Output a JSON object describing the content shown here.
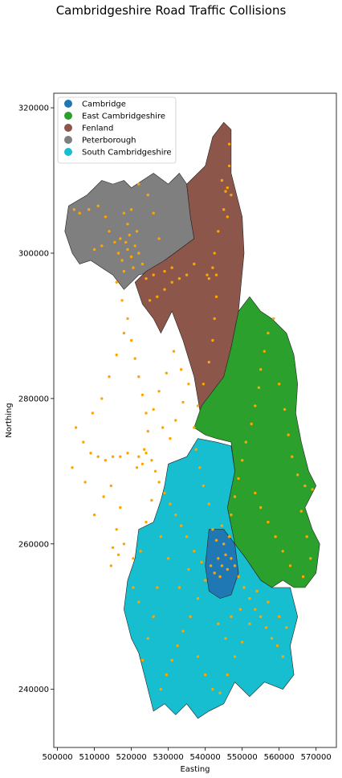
{
  "title": "Cambridgeshire Road Traffic Collisions",
  "chart_data": {
    "type": "scatter",
    "subtype": "choropleth-map-with-points",
    "title": "Cambridgeshire Road Traffic Collisions",
    "xlabel": "Easting",
    "ylabel": "Northing",
    "xlim": [
      499000,
      575500
    ],
    "ylim": [
      232000,
      322000
    ],
    "xticks": [
      500000,
      510000,
      520000,
      530000,
      540000,
      550000,
      560000,
      570000
    ],
    "yticks": [
      240000,
      260000,
      280000,
      300000,
      320000
    ],
    "grid": false,
    "legend_position": "top-left",
    "legend": [
      {
        "name": "Cambridge",
        "color": "#1f77b4"
      },
      {
        "name": "East Cambridgeshire",
        "color": "#2ca02c"
      },
      {
        "name": "Fenland",
        "color": "#8c564b"
      },
      {
        "name": "Peterborough",
        "color": "#7f7f7f"
      },
      {
        "name": "South Cambridgeshire",
        "color": "#17becf"
      }
    ],
    "point_color": "#ffa500",
    "regions": [
      {
        "name": "Peterborough",
        "color": "#7f7f7f",
        "boundary": [
          [
            503000,
            306500
          ],
          [
            508000,
            308000
          ],
          [
            512000,
            310000
          ],
          [
            515000,
            309500
          ],
          [
            518000,
            310000
          ],
          [
            520000,
            309000
          ],
          [
            523000,
            310000
          ],
          [
            526000,
            311000
          ],
          [
            530000,
            309500
          ],
          [
            533000,
            311000
          ],
          [
            535000,
            309500
          ],
          [
            536000,
            305000
          ],
          [
            537000,
            302000
          ],
          [
            533000,
            300500
          ],
          [
            529000,
            299000
          ],
          [
            526000,
            297500
          ],
          [
            522000,
            297000
          ],
          [
            518000,
            295000
          ],
          [
            515000,
            297000
          ],
          [
            512000,
            298000
          ],
          [
            509000,
            299000
          ],
          [
            506000,
            298500
          ],
          [
            504000,
            300000
          ],
          [
            502000,
            303000
          ]
        ]
      },
      {
        "name": "Fenland",
        "color": "#8c564b",
        "boundary": [
          [
            535000,
            309500
          ],
          [
            540000,
            312000
          ],
          [
            542000,
            316000
          ],
          [
            545000,
            318000
          ],
          [
            547000,
            317000
          ],
          [
            547000,
            311000
          ],
          [
            550000,
            305000
          ],
          [
            550500,
            300000
          ],
          [
            549000,
            292000
          ],
          [
            547000,
            287000
          ],
          [
            545000,
            282000
          ],
          [
            542000,
            279000
          ],
          [
            539000,
            277000
          ],
          [
            537000,
            283000
          ],
          [
            534000,
            288000
          ],
          [
            531000,
            292000
          ],
          [
            528000,
            289000
          ],
          [
            526000,
            291000
          ],
          [
            523000,
            293000
          ],
          [
            521000,
            296000
          ],
          [
            524000,
            297500
          ],
          [
            529000,
            299000
          ],
          [
            533000,
            300500
          ],
          [
            537000,
            302000
          ],
          [
            536000,
            305000
          ]
        ]
      },
      {
        "name": "East Cambridgeshire",
        "color": "#2ca02c",
        "boundary": [
          [
            547000,
            287000
          ],
          [
            549000,
            292000
          ],
          [
            552000,
            294000
          ],
          [
            555000,
            292000
          ],
          [
            558000,
            291000
          ],
          [
            562000,
            289000
          ],
          [
            564000,
            286000
          ],
          [
            565000,
            282000
          ],
          [
            564500,
            278000
          ],
          [
            566000,
            274000
          ],
          [
            568000,
            270000
          ],
          [
            570000,
            268000
          ],
          [
            567000,
            265000
          ],
          [
            569000,
            262000
          ],
          [
            571000,
            260000
          ],
          [
            570000,
            256000
          ],
          [
            567000,
            254000
          ],
          [
            564000,
            254000
          ],
          [
            561000,
            255000
          ],
          [
            558000,
            254000
          ],
          [
            555000,
            255000
          ],
          [
            551000,
            258000
          ],
          [
            548000,
            260000
          ],
          [
            546000,
            265000
          ],
          [
            548000,
            270000
          ],
          [
            547000,
            274000
          ],
          [
            543000,
            274500
          ],
          [
            540000,
            275000
          ],
          [
            537000,
            276000
          ],
          [
            539000,
            279000
          ],
          [
            542000,
            281000
          ],
          [
            545000,
            283000
          ]
        ]
      },
      {
        "name": "South Cambridgeshire",
        "color": "#17becf",
        "boundary": [
          [
            530000,
            271000
          ],
          [
            535000,
            272000
          ],
          [
            538000,
            274500
          ],
          [
            543000,
            274000
          ],
          [
            547000,
            273500
          ],
          [
            548000,
            270000
          ],
          [
            546000,
            265000
          ],
          [
            548000,
            260000
          ],
          [
            551000,
            258000
          ],
          [
            555000,
            255000
          ],
          [
            558000,
            254000
          ],
          [
            563000,
            254000
          ],
          [
            565000,
            250000
          ],
          [
            563000,
            246000
          ],
          [
            564000,
            242000
          ],
          [
            561000,
            240000
          ],
          [
            556000,
            241000
          ],
          [
            552000,
            239000
          ],
          [
            548000,
            241000
          ],
          [
            545000,
            238000
          ],
          [
            541000,
            237000
          ],
          [
            538000,
            236000
          ],
          [
            535000,
            238000
          ],
          [
            532000,
            236500
          ],
          [
            529000,
            238000
          ],
          [
            526000,
            237000
          ],
          [
            524000,
            241000
          ],
          [
            522000,
            245000
          ],
          [
            520000,
            247000
          ],
          [
            518000,
            251000
          ],
          [
            519000,
            255000
          ],
          [
            521000,
            258000
          ],
          [
            522000,
            262000
          ],
          [
            526000,
            263000
          ],
          [
            528000,
            266000
          ],
          [
            529000,
            268000
          ]
        ]
      },
      {
        "name": "Cambridge",
        "color": "#1f77b4",
        "boundary": [
          [
            541000,
            262000
          ],
          [
            545000,
            262000
          ],
          [
            548000,
            260000
          ],
          [
            549000,
            256000
          ],
          [
            547000,
            253000
          ],
          [
            544000,
            252500
          ],
          [
            541000,
            253500
          ],
          [
            540000,
            257000
          ]
        ]
      }
    ],
    "collision_points": [
      [
        519000,
        300500
      ],
      [
        518500,
        301500
      ],
      [
        520000,
        299500
      ],
      [
        517500,
        299000
      ],
      [
        521000,
        301000
      ],
      [
        519500,
        302500
      ],
      [
        516500,
        300000
      ],
      [
        520500,
        298000
      ],
      [
        518000,
        297500
      ],
      [
        522000,
        300000
      ],
      [
        519000,
        304000
      ],
      [
        517000,
        302000
      ],
      [
        521500,
        303000
      ],
      [
        515500,
        301500
      ],
      [
        523000,
        298500
      ],
      [
        518000,
        305500
      ],
      [
        520000,
        306000
      ],
      [
        514000,
        303000
      ],
      [
        513000,
        305000
      ],
      [
        511000,
        306500
      ],
      [
        508500,
        306000
      ],
      [
        506000,
        305500
      ],
      [
        504500,
        306000
      ],
      [
        512000,
        301000
      ],
      [
        510000,
        300500
      ],
      [
        524000,
        296500
      ],
      [
        526000,
        297000
      ],
      [
        529000,
        297500
      ],
      [
        531000,
        298000
      ],
      [
        527500,
        302000
      ],
      [
        526000,
        305500
      ],
      [
        524500,
        308000
      ],
      [
        522000,
        309500
      ],
      [
        516000,
        296000
      ],
      [
        517500,
        293500
      ],
      [
        519000,
        291000
      ],
      [
        520000,
        288000
      ],
      [
        521000,
        285500
      ],
      [
        522000,
        283000
      ],
      [
        523000,
        280500
      ],
      [
        524000,
        278000
      ],
      [
        524500,
        275500
      ],
      [
        523500,
        273000
      ],
      [
        522000,
        272000
      ],
      [
        524000,
        272500
      ],
      [
        525500,
        271500
      ],
      [
        523000,
        271000
      ],
      [
        521500,
        270500
      ],
      [
        526500,
        270000
      ],
      [
        527500,
        268500
      ],
      [
        529000,
        267000
      ],
      [
        530500,
        265500
      ],
      [
        532000,
        264000
      ],
      [
        533500,
        262500
      ],
      [
        535000,
        261000
      ],
      [
        537000,
        259000
      ],
      [
        539000,
        257500
      ],
      [
        541500,
        257000
      ],
      [
        543500,
        258000
      ],
      [
        544500,
        257000
      ],
      [
        545500,
        258500
      ],
      [
        546000,
        256500
      ],
      [
        544000,
        255500
      ],
      [
        542500,
        256000
      ],
      [
        545000,
        260000
      ],
      [
        543000,
        260500
      ],
      [
        546500,
        261000
      ],
      [
        544500,
        262500
      ],
      [
        542000,
        262000
      ],
      [
        547000,
        258000
      ],
      [
        548000,
        257000
      ],
      [
        549000,
        255500
      ],
      [
        550500,
        254000
      ],
      [
        552000,
        252500
      ],
      [
        553500,
        251000
      ],
      [
        555000,
        250000
      ],
      [
        556500,
        248500
      ],
      [
        558000,
        247000
      ],
      [
        559500,
        246000
      ],
      [
        561000,
        244500
      ],
      [
        540000,
        255000
      ],
      [
        538000,
        252500
      ],
      [
        536000,
        250000
      ],
      [
        534000,
        248000
      ],
      [
        532500,
        246000
      ],
      [
        531000,
        244000
      ],
      [
        529500,
        242000
      ],
      [
        528000,
        240000
      ],
      [
        547000,
        264000
      ],
      [
        548000,
        266500
      ],
      [
        549000,
        269000
      ],
      [
        550000,
        271500
      ],
      [
        551000,
        274000
      ],
      [
        552500,
        276500
      ],
      [
        553500,
        279000
      ],
      [
        554500,
        281500
      ],
      [
        555000,
        284000
      ],
      [
        556000,
        286500
      ],
      [
        557000,
        289000
      ],
      [
        558500,
        291000
      ],
      [
        541000,
        265500
      ],
      [
        539500,
        268000
      ],
      [
        538500,
        270500
      ],
      [
        537500,
        273000
      ],
      [
        537000,
        276000
      ],
      [
        538000,
        279000
      ],
      [
        539500,
        282000
      ],
      [
        541000,
        285000
      ],
      [
        542000,
        288000
      ],
      [
        542500,
        291000
      ],
      [
        543000,
        294000
      ],
      [
        543000,
        297000
      ],
      [
        542500,
        300000
      ],
      [
        543500,
        303000
      ],
      [
        545000,
        306000
      ],
      [
        546000,
        309000
      ],
      [
        546500,
        312000
      ],
      [
        546500,
        315000
      ],
      [
        545500,
        308500
      ],
      [
        547000,
        308000
      ],
      [
        544500,
        310000
      ],
      [
        546000,
        305000
      ],
      [
        541000,
        296500
      ],
      [
        542000,
        298000
      ],
      [
        540500,
        297000
      ],
      [
        537000,
        298500
      ],
      [
        535000,
        297000
      ],
      [
        533000,
        296500
      ],
      [
        531000,
        296000
      ],
      [
        529000,
        295000
      ],
      [
        527000,
        294000
      ],
      [
        525000,
        293500
      ],
      [
        560000,
        282000
      ],
      [
        561500,
        278500
      ],
      [
        562500,
        275000
      ],
      [
        563500,
        272000
      ],
      [
        565000,
        269500
      ],
      [
        567000,
        268000
      ],
      [
        569000,
        267500
      ],
      [
        566000,
        264500
      ],
      [
        567500,
        261000
      ],
      [
        568500,
        258000
      ],
      [
        566500,
        255500
      ],
      [
        563000,
        257000
      ],
      [
        561000,
        259000
      ],
      [
        559000,
        261000
      ],
      [
        557000,
        263000
      ],
      [
        555000,
        265000
      ],
      [
        553500,
        267000
      ],
      [
        505000,
        276000
      ],
      [
        507000,
        274000
      ],
      [
        509000,
        272500
      ],
      [
        511000,
        272000
      ],
      [
        513000,
        271500
      ],
      [
        515000,
        272000
      ],
      [
        517000,
        272000
      ],
      [
        519000,
        272500
      ],
      [
        509500,
        278000
      ],
      [
        512000,
        280000
      ],
      [
        514000,
        283000
      ],
      [
        516000,
        286000
      ],
      [
        518000,
        289000
      ],
      [
        517000,
        265000
      ],
      [
        516000,
        262000
      ],
      [
        515000,
        259500
      ],
      [
        514500,
        257000
      ],
      [
        518000,
        260000
      ],
      [
        516500,
        258500
      ],
      [
        520500,
        258000
      ],
      [
        522500,
        259000
      ],
      [
        524000,
        263000
      ],
      [
        525500,
        266000
      ],
      [
        527000,
        254000
      ],
      [
        526000,
        250000
      ],
      [
        524500,
        247000
      ],
      [
        523000,
        244000
      ],
      [
        522000,
        252000
      ],
      [
        520500,
        254000
      ],
      [
        533000,
        254000
      ],
      [
        535500,
        256500
      ],
      [
        530000,
        258000
      ],
      [
        528000,
        261000
      ],
      [
        538000,
        244500
      ],
      [
        540000,
        242000
      ],
      [
        542000,
        240000
      ],
      [
        544000,
        239500
      ],
      [
        546000,
        242000
      ],
      [
        548000,
        244500
      ],
      [
        550000,
        246500
      ],
      [
        552000,
        249000
      ],
      [
        554000,
        253500
      ],
      [
        557000,
        252000
      ],
      [
        560000,
        250000
      ],
      [
        562000,
        248500
      ],
      [
        543500,
        249000
      ],
      [
        545500,
        247000
      ],
      [
        547000,
        250000
      ],
      [
        549500,
        251000
      ],
      [
        533500,
        284000
      ],
      [
        531500,
        286500
      ],
      [
        529500,
        283500
      ],
      [
        527500,
        281000
      ],
      [
        526000,
        278500
      ],
      [
        528500,
        276000
      ],
      [
        530500,
        274500
      ],
      [
        532000,
        277000
      ],
      [
        534000,
        279500
      ],
      [
        535500,
        282000
      ],
      [
        510000,
        264000
      ],
      [
        512500,
        266500
      ],
      [
        514500,
        268000
      ],
      [
        504000,
        270500
      ],
      [
        507500,
        268500
      ]
    ]
  }
}
